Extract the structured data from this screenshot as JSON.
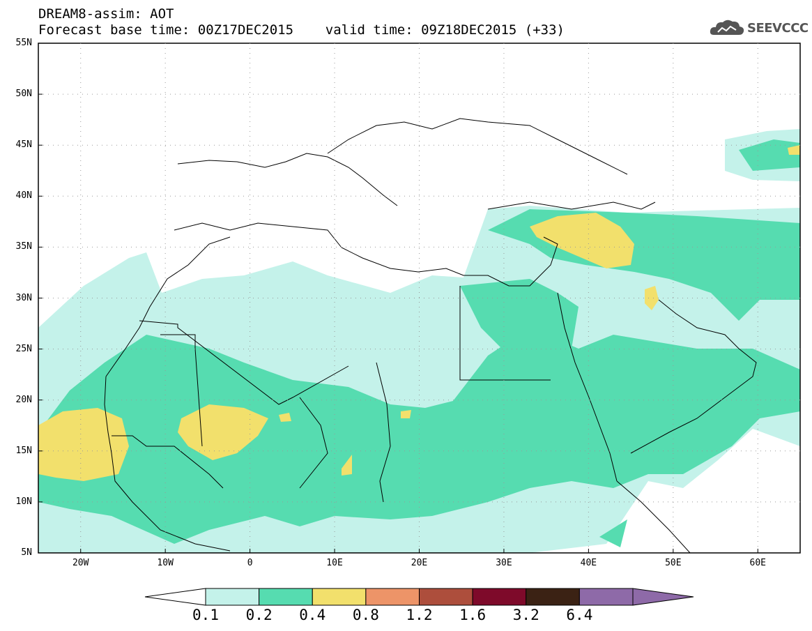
{
  "header": {
    "title_line1": "DREAM8-assim: AOT",
    "title_line2": "Forecast base time: 00Z17DEC2015    valid time: 09Z18DEC2015 (+33)",
    "logo_text": "SEEVCCC"
  },
  "map": {
    "lat_labels": [
      "55N",
      "50N",
      "45N",
      "40N",
      "35N",
      "30N",
      "25N",
      "20N",
      "15N",
      "10N",
      "5N"
    ],
    "lon_labels": [
      "20W",
      "10W",
      "0",
      "10E",
      "20E",
      "30E",
      "40E",
      "50E",
      "60E"
    ]
  },
  "colorbar": {
    "levels": [
      "0.1",
      "0.2",
      "0.4",
      "0.8",
      "1.2",
      "1.6",
      "3.2",
      "6.4"
    ],
    "colors": [
      "#ffffff",
      "#c4f2ea",
      "#56dcb0",
      "#f2e06c",
      "#ed9468",
      "#ad4e3c",
      "#7e0a2a",
      "#3b2214",
      "#8e6aa8"
    ]
  },
  "palette": {
    "land_outline": "#000000",
    "aot_0_1": "#c4f2ea",
    "aot_0_2": "#56dcb0",
    "aot_0_4": "#f2e06c"
  }
}
